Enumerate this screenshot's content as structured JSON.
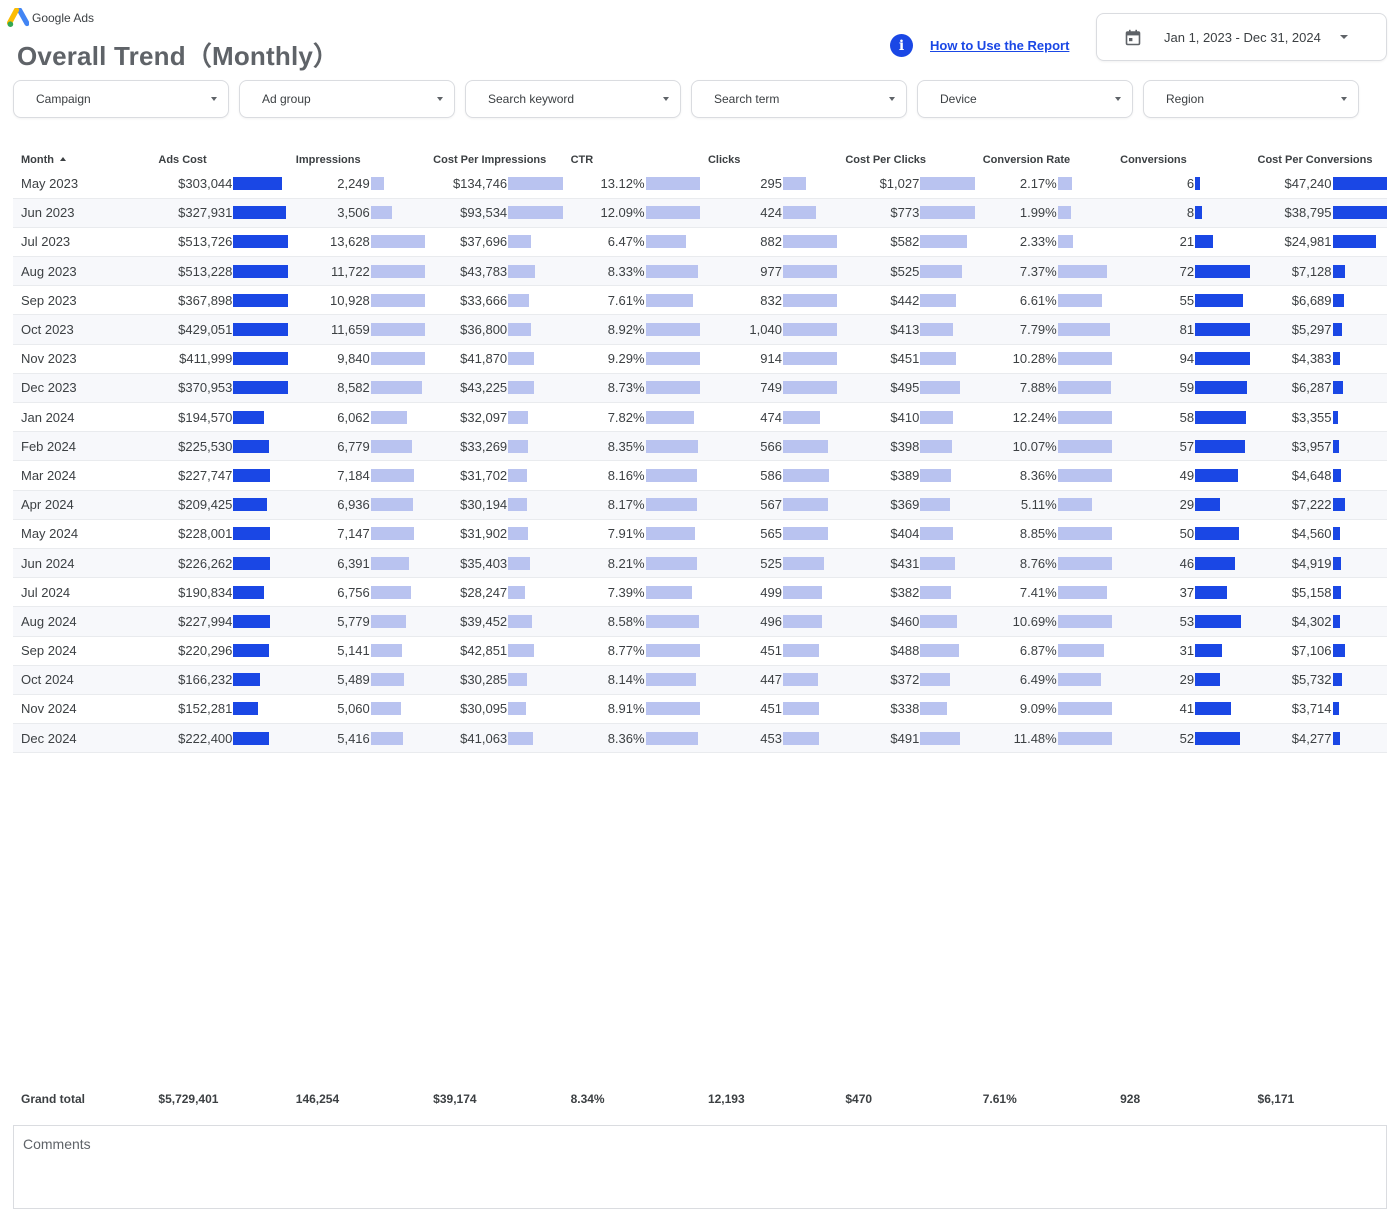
{
  "brand": {
    "name": "Google Ads"
  },
  "title": "Overall Trend（Monthly）",
  "help": {
    "link": "How to Use the Report",
    "icon": "info-icon"
  },
  "date_range": {
    "label": "Jan 1, 2023 - Dec 31, 2024",
    "icon": "calendar-icon"
  },
  "filters": [
    "Campaign",
    "Ad group",
    "Search keyword",
    "Search term",
    "Device",
    "Region"
  ],
  "colors": {
    "bar_dark": "#1a47e5",
    "bar_light": "#b9c3f0",
    "link": "#1a47e5"
  },
  "table": {
    "columns": [
      {
        "key": "month",
        "label": "Month",
        "sort": "ascending"
      },
      {
        "key": "ads_cost",
        "label": "Ads Cost",
        "bar": "dark",
        "bar_max": 513726
      },
      {
        "key": "impressions",
        "label": "Impressions",
        "bar": "light",
        "bar_max": 13628
      },
      {
        "key": "cpm",
        "label": "Cost Per Impressions",
        "bar": "light",
        "bar_max": 134746
      },
      {
        "key": "ctr",
        "label": "CTR",
        "bar": "light",
        "bar_max": 13.12
      },
      {
        "key": "clicks",
        "label": "Clicks",
        "bar": "light",
        "bar_max": 1040
      },
      {
        "key": "cpc",
        "label": "Cost Per Clicks",
        "bar": "light",
        "bar_max": 1027
      },
      {
        "key": "conv_rate",
        "label": "Conversion Rate",
        "bar": "light",
        "bar_max": 12.24
      },
      {
        "key": "conversions",
        "label": "Conversions",
        "bar": "dark",
        "bar_max": 94
      },
      {
        "key": "cost_per_conv",
        "label": "Cost Per Conversions",
        "bar": "dark",
        "bar_max": 47240
      }
    ],
    "rows": [
      {
        "month": "May 2023",
        "ads_cost": "$303,044",
        "impressions": "2,249",
        "cpm": "$134,746",
        "ctr": "13.12%",
        "clicks": "295",
        "cpc": "$1,027",
        "conv_rate": "2.17%",
        "conversions": "6",
        "cost_per_conv": "$47,240"
      },
      {
        "month": "Jun 2023",
        "ads_cost": "$327,931",
        "impressions": "3,506",
        "cpm": "$93,534",
        "ctr": "12.09%",
        "clicks": "424",
        "cpc": "$773",
        "conv_rate": "1.99%",
        "conversions": "8",
        "cost_per_conv": "$38,795"
      },
      {
        "month": "Jul 2023",
        "ads_cost": "$513,726",
        "impressions": "13,628",
        "cpm": "$37,696",
        "ctr": "6.47%",
        "clicks": "882",
        "cpc": "$582",
        "conv_rate": "2.33%",
        "conversions": "21",
        "cost_per_conv": "$24,981"
      },
      {
        "month": "Aug 2023",
        "ads_cost": "$513,228",
        "impressions": "11,722",
        "cpm": "$43,783",
        "ctr": "8.33%",
        "clicks": "977",
        "cpc": "$525",
        "conv_rate": "7.37%",
        "conversions": "72",
        "cost_per_conv": "$7,128"
      },
      {
        "month": "Sep 2023",
        "ads_cost": "$367,898",
        "impressions": "10,928",
        "cpm": "$33,666",
        "ctr": "7.61%",
        "clicks": "832",
        "cpc": "$442",
        "conv_rate": "6.61%",
        "conversions": "55",
        "cost_per_conv": "$6,689"
      },
      {
        "month": "Oct 2023",
        "ads_cost": "$429,051",
        "impressions": "11,659",
        "cpm": "$36,800",
        "ctr": "8.92%",
        "clicks": "1,040",
        "cpc": "$413",
        "conv_rate": "7.79%",
        "conversions": "81",
        "cost_per_conv": "$5,297"
      },
      {
        "month": "Nov 2023",
        "ads_cost": "$411,999",
        "impressions": "9,840",
        "cpm": "$41,870",
        "ctr": "9.29%",
        "clicks": "914",
        "cpc": "$451",
        "conv_rate": "10.28%",
        "conversions": "94",
        "cost_per_conv": "$4,383"
      },
      {
        "month": "Dec 2023",
        "ads_cost": "$370,953",
        "impressions": "8,582",
        "cpm": "$43,225",
        "ctr": "8.73%",
        "clicks": "749",
        "cpc": "$495",
        "conv_rate": "7.88%",
        "conversions": "59",
        "cost_per_conv": "$6,287"
      },
      {
        "month": "Jan 2024",
        "ads_cost": "$194,570",
        "impressions": "6,062",
        "cpm": "$32,097",
        "ctr": "7.82%",
        "clicks": "474",
        "cpc": "$410",
        "conv_rate": "12.24%",
        "conversions": "58",
        "cost_per_conv": "$3,355"
      },
      {
        "month": "Feb 2024",
        "ads_cost": "$225,530",
        "impressions": "6,779",
        "cpm": "$33,269",
        "ctr": "8.35%",
        "clicks": "566",
        "cpc": "$398",
        "conv_rate": "10.07%",
        "conversions": "57",
        "cost_per_conv": "$3,957"
      },
      {
        "month": "Mar 2024",
        "ads_cost": "$227,747",
        "impressions": "7,184",
        "cpm": "$31,702",
        "ctr": "8.16%",
        "clicks": "586",
        "cpc": "$389",
        "conv_rate": "8.36%",
        "conversions": "49",
        "cost_per_conv": "$4,648"
      },
      {
        "month": "Apr 2024",
        "ads_cost": "$209,425",
        "impressions": "6,936",
        "cpm": "$30,194",
        "ctr": "8.17%",
        "clicks": "567",
        "cpc": "$369",
        "conv_rate": "5.11%",
        "conversions": "29",
        "cost_per_conv": "$7,222"
      },
      {
        "month": "May 2024",
        "ads_cost": "$228,001",
        "impressions": "7,147",
        "cpm": "$31,902",
        "ctr": "7.91%",
        "clicks": "565",
        "cpc": "$404",
        "conv_rate": "8.85%",
        "conversions": "50",
        "cost_per_conv": "$4,560"
      },
      {
        "month": "Jun 2024",
        "ads_cost": "$226,262",
        "impressions": "6,391",
        "cpm": "$35,403",
        "ctr": "8.21%",
        "clicks": "525",
        "cpc": "$431",
        "conv_rate": "8.76%",
        "conversions": "46",
        "cost_per_conv": "$4,919"
      },
      {
        "month": "Jul 2024",
        "ads_cost": "$190,834",
        "impressions": "6,756",
        "cpm": "$28,247",
        "ctr": "7.39%",
        "clicks": "499",
        "cpc": "$382",
        "conv_rate": "7.41%",
        "conversions": "37",
        "cost_per_conv": "$5,158"
      },
      {
        "month": "Aug 2024",
        "ads_cost": "$227,994",
        "impressions": "5,779",
        "cpm": "$39,452",
        "ctr": "8.58%",
        "clicks": "496",
        "cpc": "$460",
        "conv_rate": "10.69%",
        "conversions": "53",
        "cost_per_conv": "$4,302"
      },
      {
        "month": "Sep 2024",
        "ads_cost": "$220,296",
        "impressions": "5,141",
        "cpm": "$42,851",
        "ctr": "8.77%",
        "clicks": "451",
        "cpc": "$488",
        "conv_rate": "6.87%",
        "conversions": "31",
        "cost_per_conv": "$7,106"
      },
      {
        "month": "Oct 2024",
        "ads_cost": "$166,232",
        "impressions": "5,489",
        "cpm": "$30,285",
        "ctr": "8.14%",
        "clicks": "447",
        "cpc": "$372",
        "conv_rate": "6.49%",
        "conversions": "29",
        "cost_per_conv": "$5,732"
      },
      {
        "month": "Nov 2024",
        "ads_cost": "$152,281",
        "impressions": "5,060",
        "cpm": "$30,095",
        "ctr": "8.91%",
        "clicks": "451",
        "cpc": "$338",
        "conv_rate": "9.09%",
        "conversions": "41",
        "cost_per_conv": "$3,714"
      },
      {
        "month": "Dec 2024",
        "ads_cost": "$222,400",
        "impressions": "5,416",
        "cpm": "$41,063",
        "ctr": "8.36%",
        "clicks": "453",
        "cpc": "$491",
        "conv_rate": "11.48%",
        "conversions": "52",
        "cost_per_conv": "$4,277"
      }
    ]
  },
  "totals": {
    "label": "Grand total",
    "ads_cost": "$5,729,401",
    "impressions": "146,254",
    "cpm": "$39,174",
    "ctr": "8.34%",
    "clicks": "12,193",
    "cpc": "$470",
    "conv_rate": "7.61%",
    "conversions": "928",
    "cost_per_conv": "$6,171"
  },
  "comments": {
    "label": "Comments"
  }
}
